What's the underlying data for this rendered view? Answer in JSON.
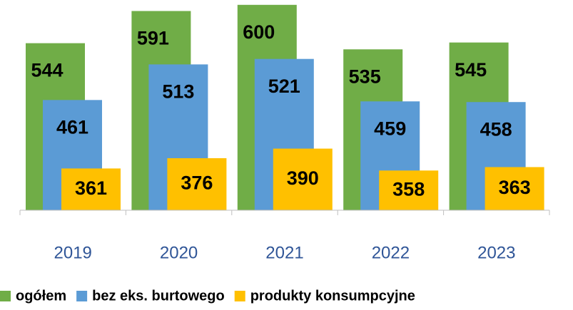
{
  "chart_data": {
    "type": "bar",
    "categories": [
      "2019",
      "2020",
      "2021",
      "2022",
      "2023"
    ],
    "series": [
      {
        "name": "ogółem",
        "color": "#70ad47",
        "values": [
          544,
          591,
          600,
          535,
          545
        ]
      },
      {
        "name": "bez eks. burtowego",
        "color": "#5b9bd5",
        "values": [
          461,
          513,
          521,
          459,
          458
        ]
      },
      {
        "name": "produkty konsumpcyjne",
        "color": "#ffc000",
        "values": [
          361,
          376,
          390,
          358,
          363
        ]
      }
    ],
    "ylim": [
      300,
      605
    ],
    "legend": "bottom"
  }
}
